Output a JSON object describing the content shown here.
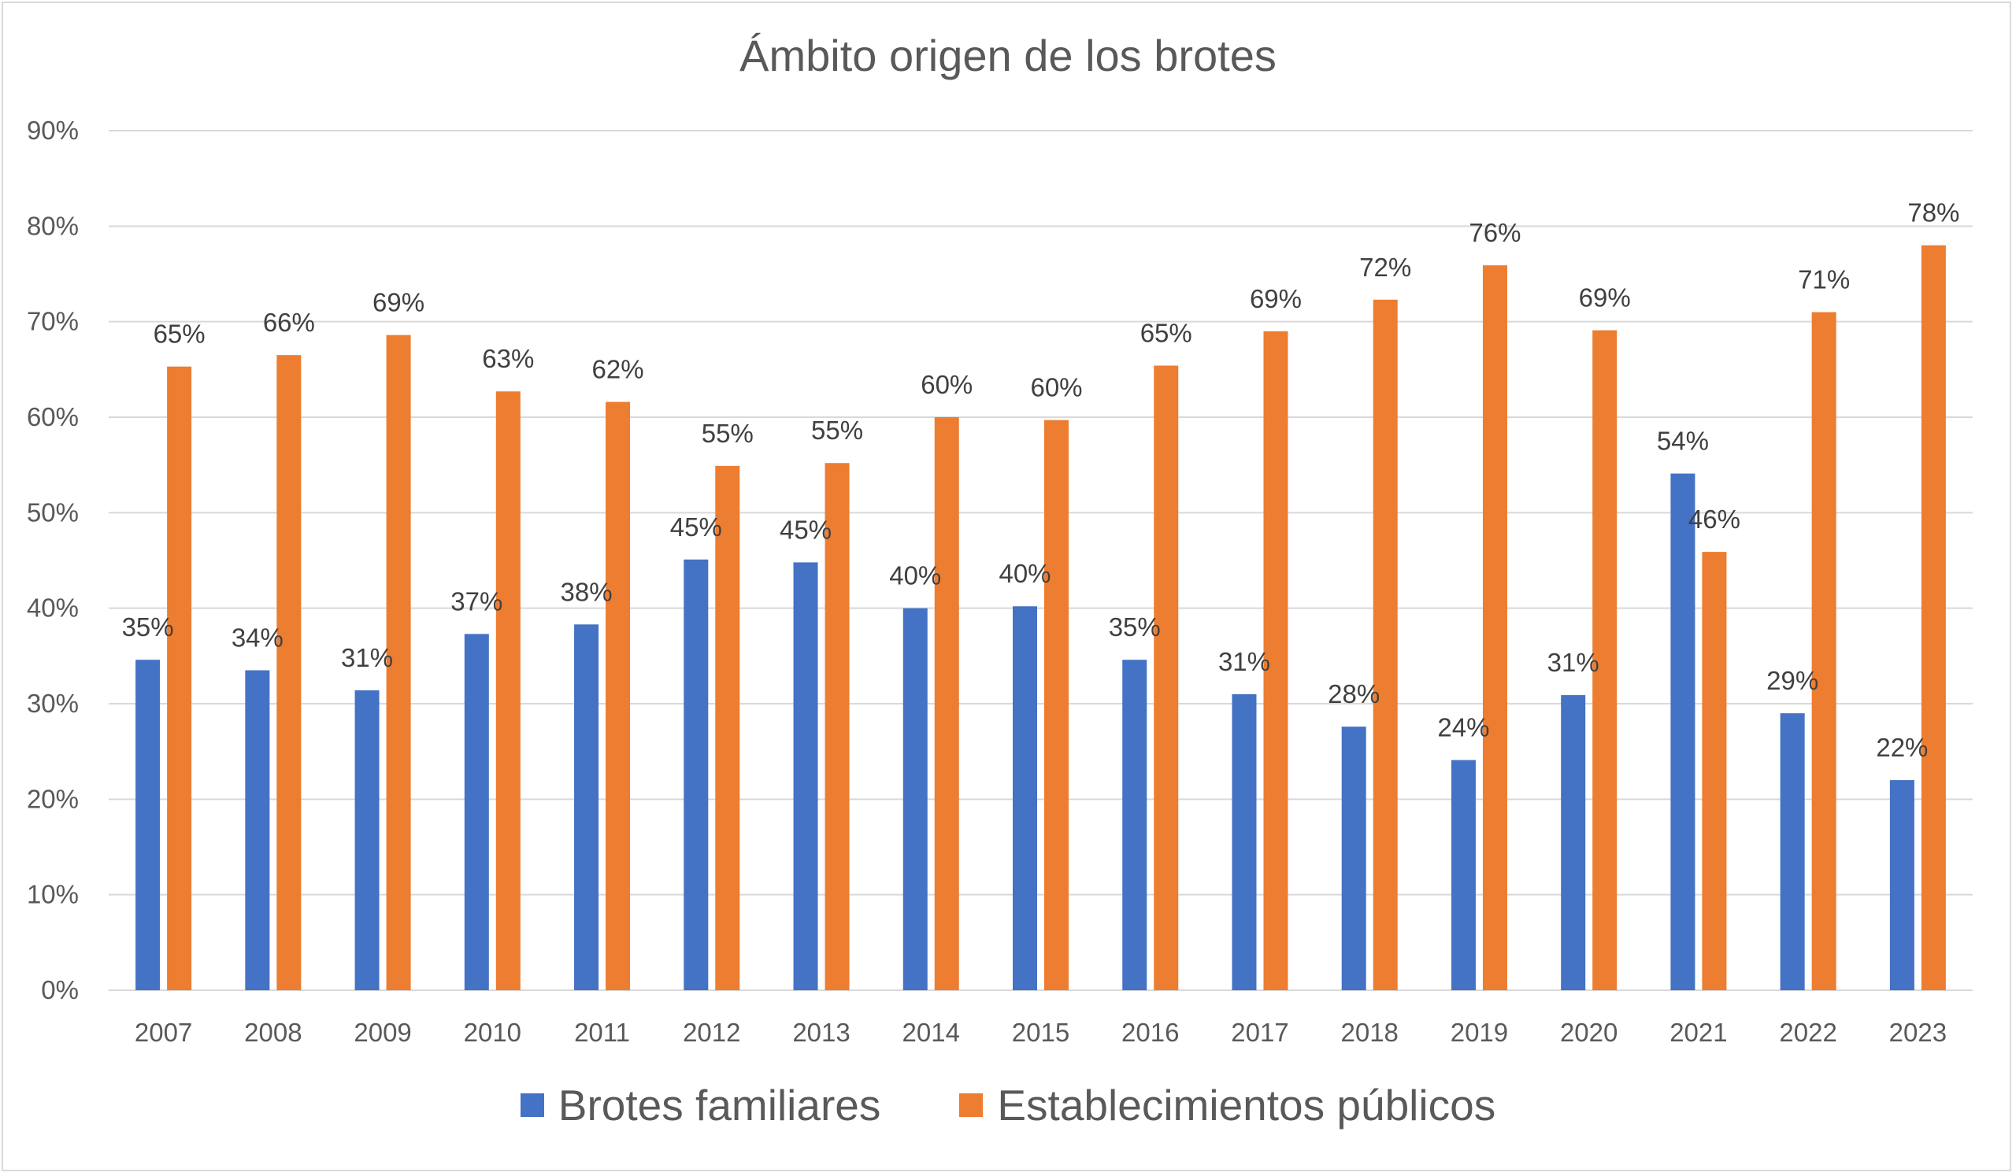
{
  "chart_data": {
    "type": "bar",
    "title": "Ámbito origen de los brotes",
    "categories": [
      "2007",
      "2008",
      "2009",
      "2010",
      "2011",
      "2012",
      "2013",
      "2014",
      "2015",
      "2016",
      "2017",
      "2018",
      "2019",
      "2020",
      "2021",
      "2022",
      "2023"
    ],
    "series": [
      {
        "name": "Brotes familiares",
        "color": "#4472c4",
        "values": [
          34.6,
          33.5,
          31.4,
          37.3,
          38.3,
          45.1,
          44.8,
          40.0,
          40.2,
          34.6,
          31.0,
          27.6,
          24.1,
          30.9,
          54.1,
          29.0,
          22.0
        ],
        "labels": [
          "35%",
          "34%",
          "31%",
          "37%",
          "38%",
          "45%",
          "45%",
          "40%",
          "40%",
          "35%",
          "31%",
          "28%",
          "24%",
          "31%",
          "54%",
          "29%",
          "22%"
        ]
      },
      {
        "name": "Establecimientos públicos",
        "color": "#ed7d31",
        "values": [
          65.3,
          66.5,
          68.6,
          62.7,
          61.6,
          54.9,
          55.2,
          60.0,
          59.7,
          65.4,
          69.0,
          72.3,
          75.9,
          69.1,
          45.9,
          71.0,
          78.0
        ],
        "labels": [
          "65%",
          "66%",
          "69%",
          "63%",
          "62%",
          "55%",
          "55%",
          "60%",
          "60%",
          "65%",
          "69%",
          "72%",
          "76%",
          "69%",
          "46%",
          "71%",
          "78%"
        ]
      }
    ],
    "ylim": [
      0,
      90
    ],
    "yticks": [
      0,
      10,
      20,
      30,
      40,
      50,
      60,
      70,
      80,
      90
    ],
    "ytick_labels": [
      "0%",
      "10%",
      "20%",
      "30%",
      "40%",
      "50%",
      "60%",
      "70%",
      "80%",
      "90%"
    ],
    "xlabel": "",
    "ylabel": "",
    "grid": true,
    "legend_position": "bottom",
    "gridline_color": "#d9d9d9",
    "text_color": "#595959"
  }
}
